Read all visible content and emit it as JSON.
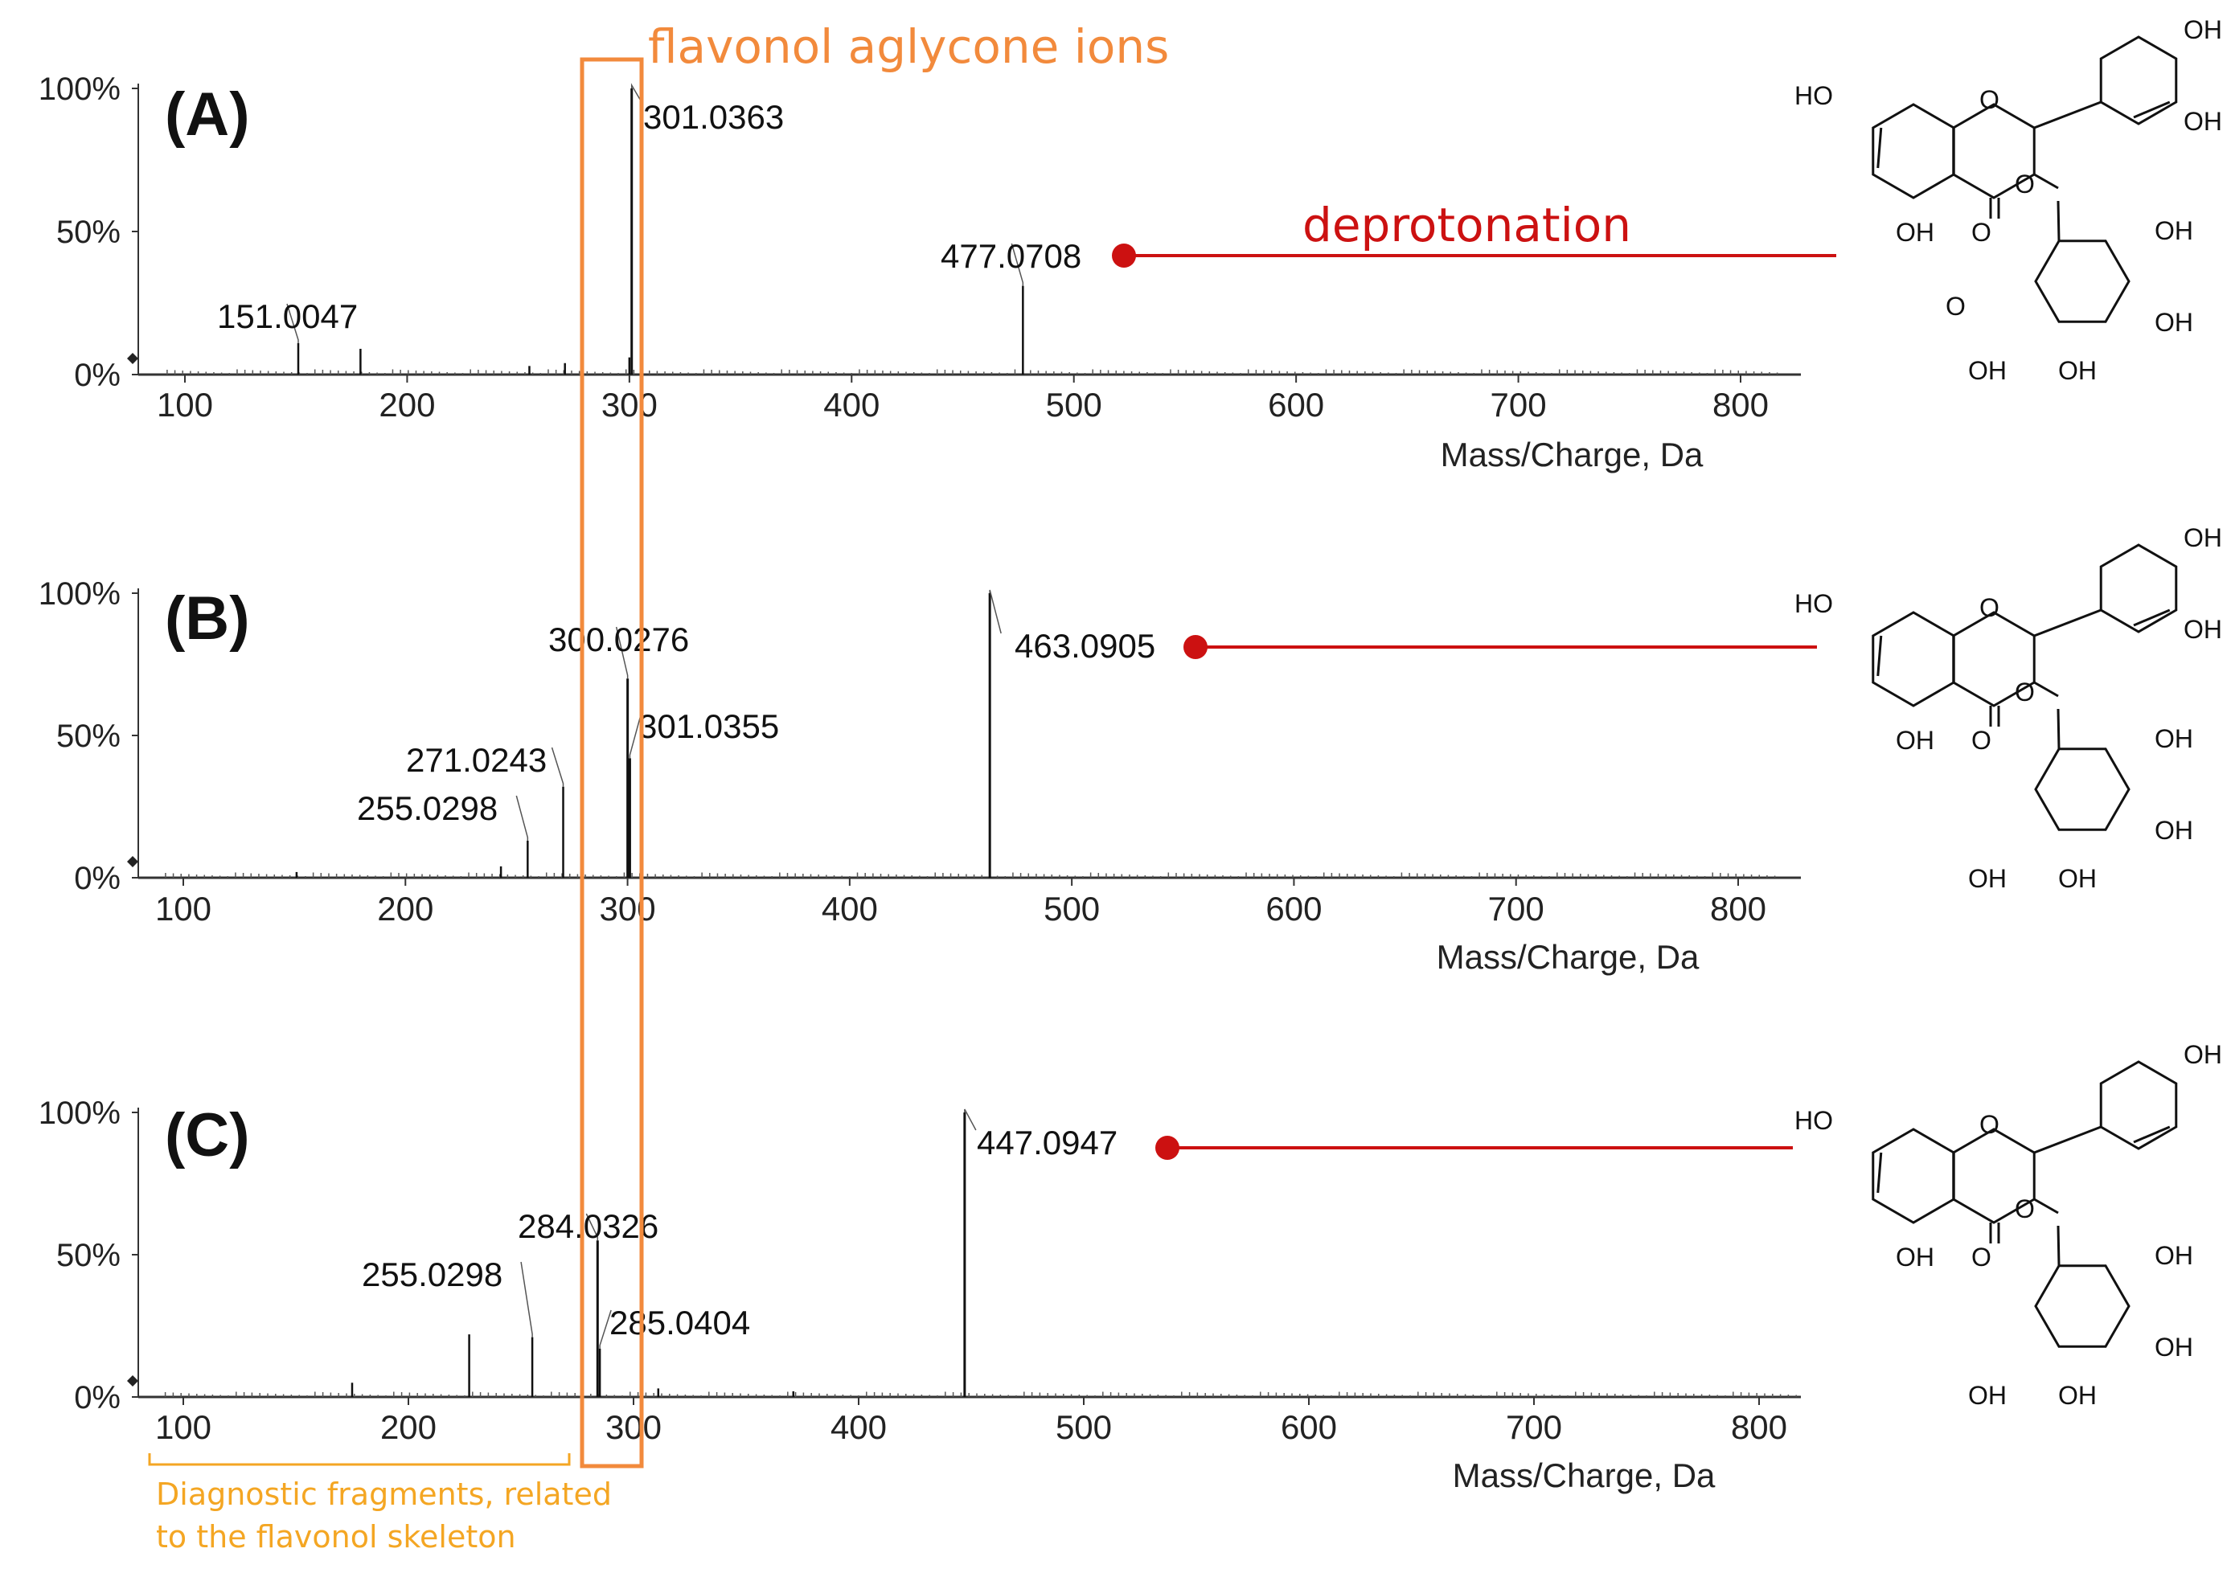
{
  "annotations": {
    "aglycone_box_label": "flavonol aglycone ions",
    "deprotonation_label": "deprotonation",
    "diagnostic_line1": "Diagnostic fragments, related",
    "diagnostic_line2": "to the flavonol skeleton",
    "colors": {
      "orange": "#f28a3c",
      "red": "#cc1111",
      "yellow": "#f4a623",
      "ink": "#111111"
    }
  },
  "chart_data": [
    {
      "type": "bar",
      "panel": "(A)",
      "xlabel": "Mass/Charge, Da",
      "xlim": [
        80,
        830
      ],
      "xticks": [
        "100",
        "200",
        "300",
        "400",
        "500",
        "600",
        "700",
        "800"
      ],
      "yticks": [
        "0%",
        "50%",
        "100%"
      ],
      "ylim": [
        0,
        100
      ],
      "precursor_label": "477.0708",
      "peaks": [
        {
          "mz": 301.0363,
          "intensity": 100,
          "label": "301.0363"
        },
        {
          "mz": 477.0708,
          "intensity": 31,
          "label": "477.0708"
        },
        {
          "mz": 151.0047,
          "intensity": 11,
          "label": "151.0047"
        },
        {
          "mz": 179.0,
          "intensity": 9,
          "label": ""
        },
        {
          "mz": 255.0,
          "intensity": 3,
          "label": ""
        },
        {
          "mz": 271.0,
          "intensity": 4,
          "label": ""
        },
        {
          "mz": 300.0,
          "intensity": 6,
          "label": ""
        }
      ]
    },
    {
      "type": "bar",
      "panel": "(B)",
      "xlabel": "Mass/Charge, Da",
      "xlim": [
        80,
        830
      ],
      "xticks": [
        "100",
        "200",
        "300",
        "400",
        "500",
        "600",
        "700",
        "800"
      ],
      "yticks": [
        "0%",
        "50%",
        "100%"
      ],
      "ylim": [
        0,
        100
      ],
      "precursor_label": "463.0905",
      "peaks": [
        {
          "mz": 463.0905,
          "intensity": 100,
          "label": "463.0905"
        },
        {
          "mz": 300.0276,
          "intensity": 70,
          "label": "300.0276"
        },
        {
          "mz": 301.0355,
          "intensity": 42,
          "label": "301.0355"
        },
        {
          "mz": 271.0243,
          "intensity": 32,
          "label": "271.0243"
        },
        {
          "mz": 255.0298,
          "intensity": 13,
          "label": "255.0298"
        },
        {
          "mz": 243.0,
          "intensity": 4,
          "label": ""
        },
        {
          "mz": 151.0,
          "intensity": 2,
          "label": ""
        }
      ]
    },
    {
      "type": "bar",
      "panel": "(C)",
      "xlabel": "Mass/Charge, Da",
      "xlim": [
        80,
        830
      ],
      "xticks": [
        "100",
        "200",
        "300",
        "400",
        "500",
        "600",
        "700",
        "800"
      ],
      "yticks": [
        "0%",
        "50%",
        "100%"
      ],
      "ylim": [
        0,
        100
      ],
      "precursor_label": "447.0947",
      "peaks": [
        {
          "mz": 447.0947,
          "intensity": 100,
          "label": "447.0947"
        },
        {
          "mz": 284.0326,
          "intensity": 55,
          "label": "284.0326"
        },
        {
          "mz": 285.0404,
          "intensity": 17,
          "label": "285.0404"
        },
        {
          "mz": 255.0298,
          "intensity": 21,
          "label": "255.0298"
        },
        {
          "mz": 227.0,
          "intensity": 22,
          "label": ""
        },
        {
          "mz": 175.0,
          "intensity": 5,
          "label": ""
        },
        {
          "mz": 311.0,
          "intensity": 3,
          "label": ""
        },
        {
          "mz": 371.0,
          "intensity": 2,
          "label": ""
        }
      ]
    }
  ],
  "structures": [
    {
      "name": "quercetin glucuronide",
      "labels": [
        "OH",
        "OH",
        "HO",
        "O",
        "O",
        "OH",
        "O",
        "OH",
        "O",
        "OH",
        "OH",
        "OH"
      ]
    },
    {
      "name": "quercetin glucoside",
      "labels": [
        "OH",
        "OH",
        "HO",
        "O",
        "O",
        "OH",
        "O",
        "OH",
        "OH",
        "OH",
        "OH"
      ]
    },
    {
      "name": "kaempferol glucoside",
      "labels": [
        "OH",
        "HO",
        "O",
        "O",
        "OH",
        "O",
        "OH",
        "OH",
        "OH",
        "OH"
      ]
    }
  ]
}
